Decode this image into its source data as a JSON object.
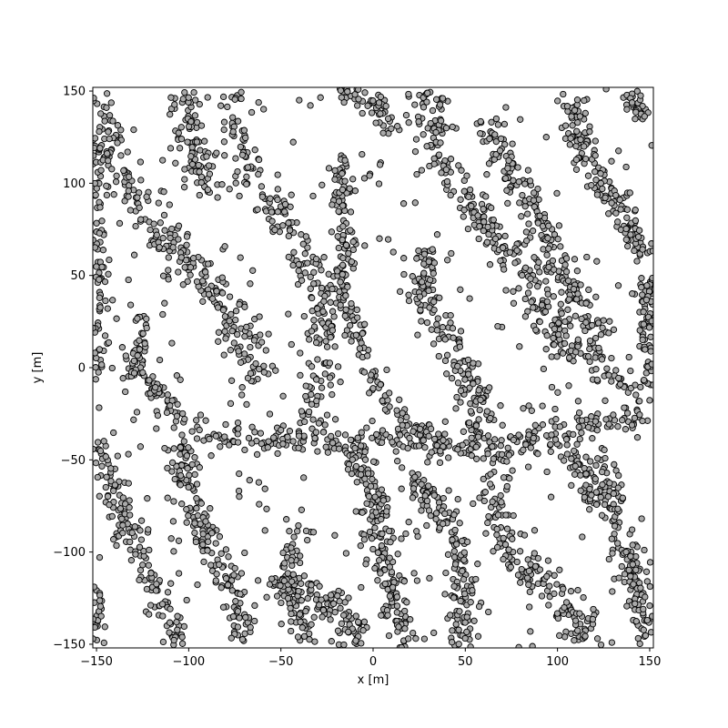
{
  "chart_data": {
    "type": "scatter",
    "xlabel": "x [m]",
    "ylabel": "y [m]",
    "xlim": [
      -152,
      152
    ],
    "ylim": [
      -152,
      152
    ],
    "x_ticks": [
      -150,
      -100,
      -50,
      0,
      50,
      100,
      150
    ],
    "y_ticks": [
      -150,
      -100,
      -50,
      0,
      50,
      100,
      150
    ],
    "grid": false,
    "marker": {
      "shape": "circle",
      "face_color": "#a9a9a9",
      "edge_color": "#000000"
    },
    "bands": [
      {
        "path": [
          [
            -150,
            148
          ],
          [
            -138,
            110
          ],
          [
            -120,
            78
          ],
          [
            -100,
            58
          ],
          [
            -82,
            35
          ],
          [
            -68,
            12
          ],
          [
            -60,
            -8
          ]
        ],
        "width": 16,
        "count": 240
      },
      {
        "path": [
          [
            -150,
            120
          ],
          [
            -150,
            -5
          ]
        ],
        "width": 10,
        "count": 110
      },
      {
        "path": [
          [
            -125,
            30
          ],
          [
            -130,
            -5
          ]
        ],
        "width": 8,
        "count": 40
      },
      {
        "path": [
          [
            -130,
            0
          ],
          [
            -112,
            -20
          ],
          [
            -95,
            -35
          ],
          [
            -70,
            -40
          ],
          [
            -45,
            -38
          ],
          [
            -20,
            -42
          ],
          [
            10,
            -38
          ],
          [
            30,
            -40
          ],
          [
            45,
            -45
          ],
          [
            65,
            -42
          ],
          [
            90,
            -38
          ],
          [
            120,
            -30
          ],
          [
            150,
            -25
          ]
        ],
        "width": 10,
        "count": 300
      },
      {
        "path": [
          [
            -148,
            -35
          ],
          [
            -140,
            -70
          ],
          [
            -128,
            -100
          ],
          [
            -115,
            -125
          ],
          [
            -104,
            -150
          ]
        ],
        "width": 12,
        "count": 150
      },
      {
        "path": [
          [
            -150,
            -120
          ],
          [
            -150,
            -150
          ]
        ],
        "width": 8,
        "count": 30
      },
      {
        "path": [
          [
            -102,
            148
          ],
          [
            -98,
            115
          ],
          [
            -90,
            95
          ]
        ],
        "width": 14,
        "count": 90
      },
      {
        "path": [
          [
            -78,
            148
          ],
          [
            -75,
            115
          ],
          [
            -60,
            95
          ],
          [
            -45,
            72
          ],
          [
            -32,
            52
          ],
          [
            -25,
            30
          ],
          [
            -28,
            5
          ],
          [
            -32,
            -20
          ],
          [
            -35,
            -40
          ]
        ],
        "width": 14,
        "count": 230
      },
      {
        "path": [
          [
            -105,
            -40
          ],
          [
            -100,
            -70
          ],
          [
            -88,
            -100
          ],
          [
            -72,
            -125
          ],
          [
            -70,
            -150
          ]
        ],
        "width": 12,
        "count": 160
      },
      {
        "path": [
          [
            -58,
            -115
          ],
          [
            -45,
            -120
          ],
          [
            -28,
            -125
          ],
          [
            -15,
            -138
          ],
          [
            -5,
            -150
          ]
        ],
        "width": 14,
        "count": 120
      },
      {
        "path": [
          [
            -18,
            148
          ],
          [
            -5,
            148
          ],
          [
            5,
            140
          ],
          [
            10,
            128
          ]
        ],
        "width": 10,
        "count": 50
      },
      {
        "path": [
          [
            -15,
            115
          ],
          [
            -18,
            90
          ],
          [
            -15,
            65
          ],
          [
            -18,
            40
          ],
          [
            -10,
            25
          ],
          [
            -5,
            5
          ],
          [
            5,
            -15
          ],
          [
            20,
            -30
          ],
          [
            35,
            -40
          ],
          [
            45,
            -45
          ]
        ],
        "width": 9,
        "count": 200
      },
      {
        "path": [
          [
            -10,
            -45
          ],
          [
            0,
            -70
          ],
          [
            5,
            -100
          ],
          [
            10,
            -125
          ],
          [
            20,
            -150
          ]
        ],
        "width": 12,
        "count": 170
      },
      {
        "path": [
          [
            -35,
            -85
          ],
          [
            -50,
            -110
          ],
          [
            -35,
            -150
          ]
        ],
        "width": 10,
        "count": 70
      },
      {
        "path": [
          [
            25,
            148
          ],
          [
            35,
            130
          ],
          [
            40,
            110
          ],
          [
            50,
            95
          ],
          [
            55,
            80
          ],
          [
            75,
            60
          ],
          [
            88,
            40
          ],
          [
            100,
            20
          ],
          [
            115,
            5
          ],
          [
            130,
            -5
          ],
          [
            150,
            -15
          ]
        ],
        "width": 16,
        "count": 300
      },
      {
        "path": [
          [
            30,
            65
          ],
          [
            25,
            45
          ],
          [
            35,
            25
          ],
          [
            45,
            10
          ],
          [
            55,
            -15
          ],
          [
            58,
            -35
          ],
          [
            52,
            -45
          ]
        ],
        "width": 12,
        "count": 170
      },
      {
        "path": [
          [
            20,
            -60
          ],
          [
            30,
            -70
          ],
          [
            40,
            -85
          ],
          [
            48,
            -100
          ],
          [
            50,
            -125
          ],
          [
            45,
            -150
          ]
        ],
        "width": 12,
        "count": 150
      },
      {
        "path": [
          [
            70,
            -45
          ],
          [
            65,
            -75
          ],
          [
            70,
            -95
          ],
          [
            85,
            -110
          ],
          [
            100,
            -118
          ],
          [
            110,
            -132
          ],
          [
            112,
            -150
          ]
        ],
        "width": 14,
        "count": 170
      },
      {
        "path": [
          [
            60,
            135
          ],
          [
            72,
            110
          ],
          [
            80,
            95
          ],
          [
            92,
            75
          ],
          [
            100,
            55
          ],
          [
            110,
            40
          ],
          [
            125,
            15
          ]
        ],
        "width": 12,
        "count": 180
      },
      {
        "path": [
          [
            108,
            148
          ],
          [
            110,
            125
          ],
          [
            120,
            108
          ],
          [
            130,
            92
          ],
          [
            140,
            75
          ],
          [
            150,
            60
          ]
        ],
        "width": 12,
        "count": 150
      },
      {
        "path": [
          [
            138,
            148
          ],
          [
            148,
            135
          ]
        ],
        "width": 8,
        "count": 30
      },
      {
        "path": [
          [
            150,
            50
          ],
          [
            148,
            20
          ],
          [
            150,
            -10
          ]
        ],
        "width": 8,
        "count": 80
      },
      {
        "path": [
          [
            122,
            -45
          ],
          [
            128,
            -70
          ],
          [
            135,
            -95
          ],
          [
            142,
            -115
          ],
          [
            148,
            -150
          ]
        ],
        "width": 12,
        "count": 160
      },
      {
        "path": [
          [
            100,
            -40
          ],
          [
            112,
            -55
          ],
          [
            118,
            -75
          ]
        ],
        "width": 8,
        "count": 50
      }
    ],
    "scatter_points": 360
  }
}
